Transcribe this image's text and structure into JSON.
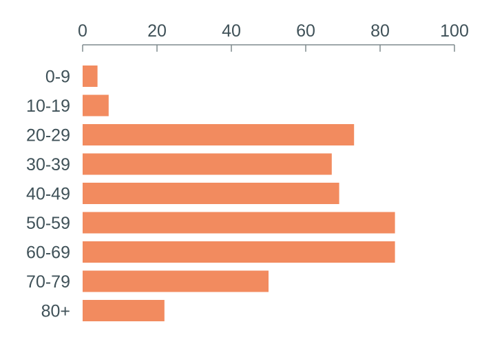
{
  "chart_data": {
    "type": "bar",
    "orientation": "horizontal",
    "categories": [
      "0-9",
      "10-19",
      "20-29",
      "30-39",
      "40-49",
      "50-59",
      "60-69",
      "70-79",
      "80+"
    ],
    "values": [
      4,
      7,
      73,
      67,
      69,
      84,
      84,
      50,
      22
    ],
    "xlim": [
      0,
      100
    ],
    "xticks": [
      0,
      20,
      40,
      60,
      80,
      100
    ],
    "x_axis_position": "top",
    "grid": false,
    "title": "",
    "xlabel": "",
    "ylabel": "",
    "bar_color": "#f28b5f",
    "text_color": "#3f5158",
    "axis_color": "#7f8a8e"
  }
}
